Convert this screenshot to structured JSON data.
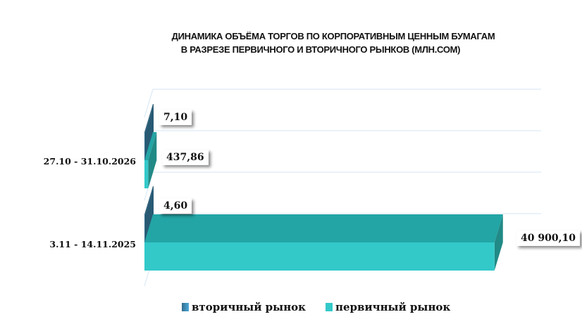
{
  "chart_data": {
    "type": "bar",
    "orientation": "horizontal",
    "title": "ДИНАМИКА ОБЪЁМА ТОРГОВ ПО КОРПОРАТИВНЫМ ЦЕННЫМ БУМАГАМ В РАЗРЕЗЕ ПЕРВИЧНОГО И ВТОРИЧНОГО РЫНКОВ  (МЛН.СОМ)",
    "title_lines": [
      "ДИНАМИКА ОБЪЁМА ТОРГОВ ПО КОРПОРАТИВНЫМ ЦЕННЫМ БУМАГАМ",
      "В РАЗРЕЗЕ ПЕРВИЧНОГО И ВТОРИЧНОГО РЫНКОВ  (МЛН.СОМ)"
    ],
    "categories": [
      "27.10 - 31.10.2026",
      "3.11 - 14.11.2025"
    ],
    "series": [
      {
        "name": "вторичный рынок",
        "values": [
          7.1,
          4.6
        ],
        "labels": [
          "7,10",
          "4,60"
        ],
        "color": "#336e8e"
      },
      {
        "name": "первичный рынок",
        "values": [
          437.86,
          40900.1
        ],
        "labels": [
          "437,86",
          "40 900,10"
        ],
        "color": "#33c9c9"
      }
    ],
    "xlim": [
      0,
      41000
    ],
    "legend": "bottom"
  }
}
